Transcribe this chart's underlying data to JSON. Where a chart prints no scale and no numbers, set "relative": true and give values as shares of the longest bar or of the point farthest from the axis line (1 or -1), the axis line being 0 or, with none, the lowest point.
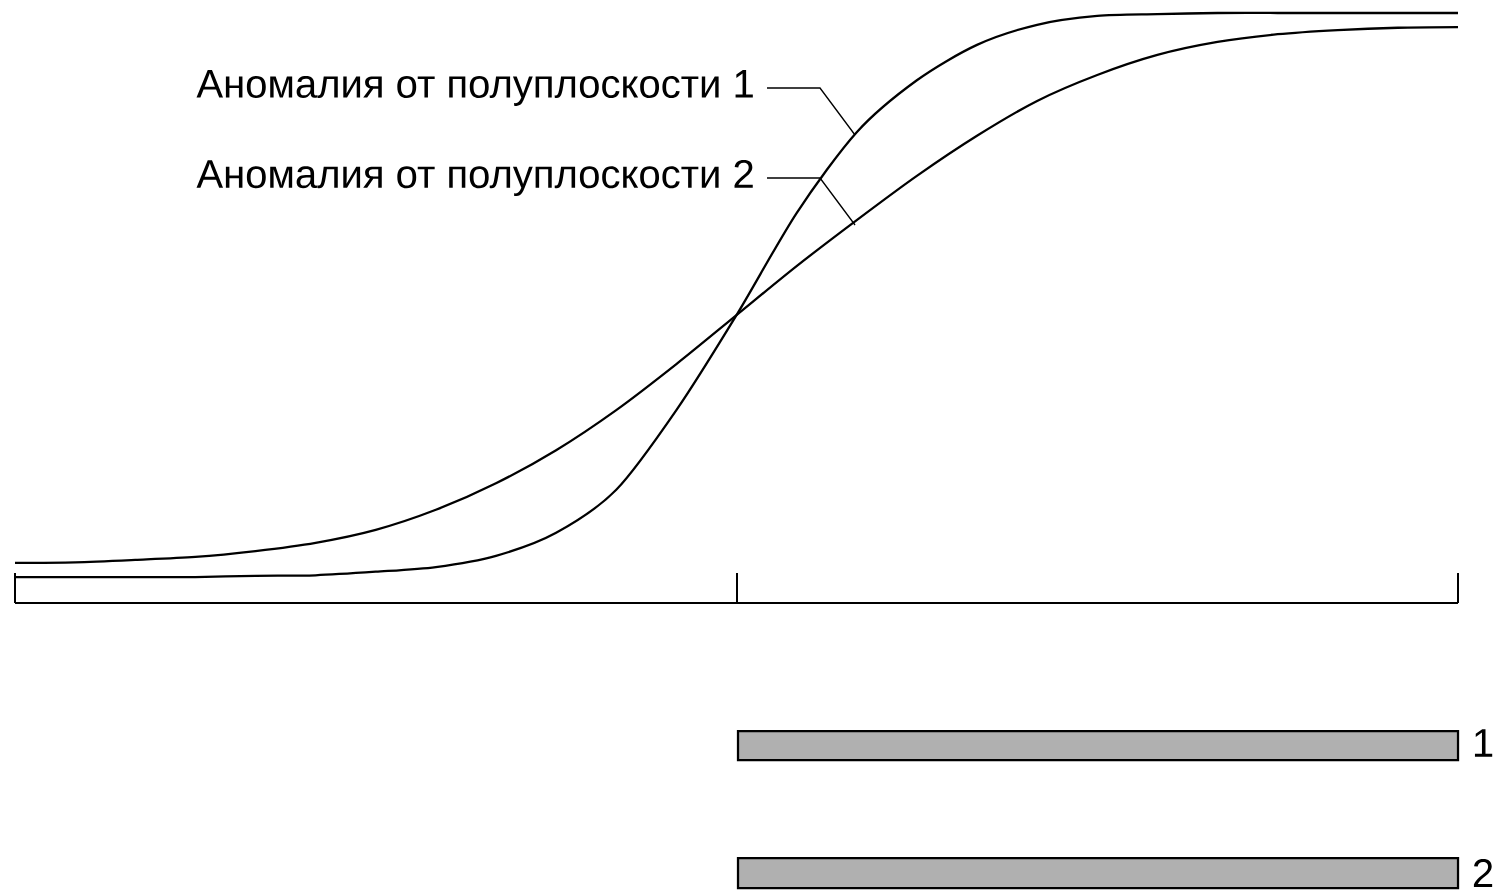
{
  "chart_data": {
    "type": "line",
    "relative": true,
    "categories": [
      null,
      null,
      null,
      null,
      null,
      null,
      null,
      null,
      null,
      null,
      null,
      null,
      null,
      null,
      null,
      null,
      null,
      null,
      null,
      null,
      null,
      null,
      null,
      null,
      null
    ],
    "series": [
      {
        "name": "Аномалия от полуплоскости 1",
        "color": "#000000",
        "values": [
          0.044,
          0.044,
          0.044,
          0.044,
          0.046,
          0.047,
          0.053,
          0.061,
          0.08,
          0.119,
          0.192,
          0.327,
          0.488,
          0.661,
          0.798,
          0.886,
          0.946,
          0.98,
          0.995,
          0.998,
          1,
          1,
          1,
          1,
          1
        ]
      },
      {
        "name": "Аномалия от полуплоскости 2",
        "color": "#000000",
        "values": [
          0.068,
          0.069,
          0.073,
          0.078,
          0.088,
          0.102,
          0.124,
          0.158,
          0.203,
          0.259,
          0.327,
          0.405,
          0.488,
          0.571,
          0.649,
          0.724,
          0.792,
          0.851,
          0.895,
          0.929,
          0.951,
          0.964,
          0.971,
          0.975,
          0.976
        ]
      }
    ],
    "legend": "top left",
    "annotations": [
      "1",
      "2"
    ]
  }
}
